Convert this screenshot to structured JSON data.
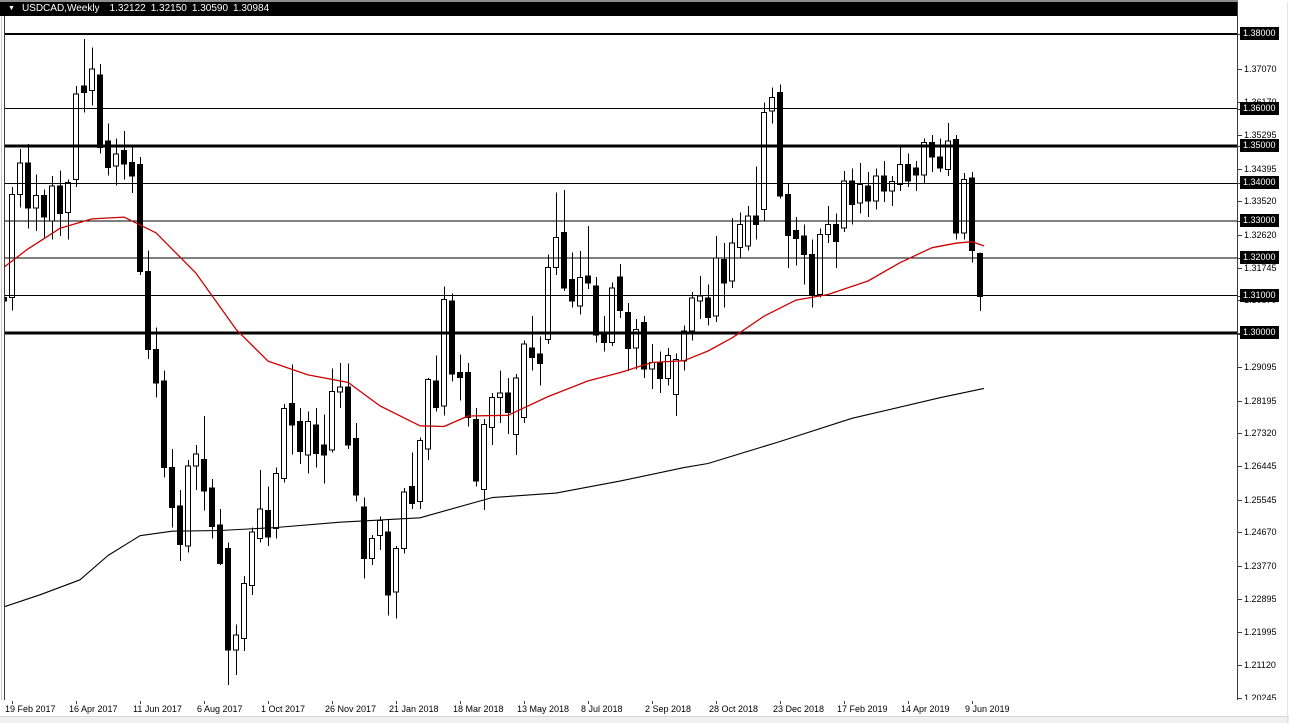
{
  "titlebar": {
    "collapse_icon": "▼",
    "symbol": "USDCAD,Weekly",
    "open": "1.32122",
    "high": "1.32150",
    "low": "1.30590",
    "close": "1.30984"
  },
  "colors": {
    "titlebar_bg": "#000000",
    "titlebar_text": "#ffffff",
    "background": "#ffffff",
    "bull_fill": "#ffffff",
    "bear_fill": "#000000",
    "outline": "#000000",
    "ma_fast": "#cc0000",
    "ma_slow": "#000000",
    "level_line": "#000000",
    "axis_box_bg": "#000000",
    "axis_box_text": "#ffffff"
  },
  "y_axis": {
    "boxed": [
      {
        "price": 1.38,
        "label": "1.38000"
      },
      {
        "price": 1.36,
        "label": "1.36000"
      },
      {
        "price": 1.35,
        "label": "1.35000"
      },
      {
        "price": 1.34,
        "label": "1.34000"
      },
      {
        "price": 1.33,
        "label": "1.33000"
      },
      {
        "price": 1.32,
        "label": "1.32000"
      },
      {
        "price": 1.31,
        "label": "1.31000"
      },
      {
        "price": 1.3,
        "label": "1.30000"
      }
    ],
    "ticks": [
      {
        "price": 1.3707,
        "label": "1.37070"
      },
      {
        "price": 1.3617,
        "label": "1.36170"
      },
      {
        "price": 1.35295,
        "label": "1.35295"
      },
      {
        "price": 1.34395,
        "label": "1.34395"
      },
      {
        "price": 1.3352,
        "label": "1.33520"
      },
      {
        "price": 1.3262,
        "label": "1.32620"
      },
      {
        "price": 1.31745,
        "label": "1.31745"
      },
      {
        "price": 1.3087,
        "label": "1.30870"
      },
      {
        "price": 1.2997,
        "label": "1.29970"
      },
      {
        "price": 1.29095,
        "label": "1.29095"
      },
      {
        "price": 1.28195,
        "label": "1.28195"
      },
      {
        "price": 1.2732,
        "label": "1.27320"
      },
      {
        "price": 1.26445,
        "label": "1.26445"
      },
      {
        "price": 1.25545,
        "label": "1.25545"
      },
      {
        "price": 1.2467,
        "label": "1.24670"
      },
      {
        "price": 1.2377,
        "label": "1.23770"
      },
      {
        "price": 1.22895,
        "label": "1.22895"
      },
      {
        "price": 1.21995,
        "label": "1.21995"
      },
      {
        "price": 1.2112,
        "label": "1.21120"
      },
      {
        "price": 1.20245,
        "label": "1.20245"
      }
    ]
  },
  "x_axis": {
    "labels": [
      {
        "week": 0,
        "text": "19 Feb 2017"
      },
      {
        "week": 8,
        "text": "16 Apr 2017"
      },
      {
        "week": 16,
        "text": "11 Jun 2017"
      },
      {
        "week": 24,
        "text": "6 Aug 2017"
      },
      {
        "week": 32,
        "text": "1 Oct 2017"
      },
      {
        "week": 40,
        "text": "26 Nov 2017"
      },
      {
        "week": 48,
        "text": "21 Jan 2018"
      },
      {
        "week": 56,
        "text": "18 Mar 2018"
      },
      {
        "week": 64,
        "text": "13 May 2018"
      },
      {
        "week": 72,
        "text": "8 Jul 2018"
      },
      {
        "week": 80,
        "text": "2 Sep 2018"
      },
      {
        "week": 88,
        "text": "28 Oct 2018"
      },
      {
        "week": 96,
        "text": "23 Dec 2018"
      },
      {
        "week": 104,
        "text": "17 Feb 2019"
      },
      {
        "week": 112,
        "text": "14 Apr 2019"
      },
      {
        "week": 120,
        "text": "9 Jun 2019"
      }
    ]
  },
  "chart_data": {
    "type": "candlestick",
    "title": "USDCAD Weekly",
    "symbol": "USDCAD",
    "timeframe": "Weekly",
    "start_label": "19 Feb 2017",
    "end_label": "9 Jun 2019",
    "visible_price_range": [
      1.20187,
      1.38476
    ],
    "last_candle_ohlc": [
      1.32122,
      1.3215,
      1.3059,
      1.30984
    ],
    "levels": [
      {
        "price": 1.38,
        "width": 2
      },
      {
        "price": 1.36,
        "width": 1
      },
      {
        "price": 1.35,
        "width": 3
      },
      {
        "price": 1.34,
        "width": 1
      },
      {
        "price": 1.33,
        "width": 1
      },
      {
        "price": 1.32,
        "width": 1
      },
      {
        "price": 1.31,
        "width": 1
      },
      {
        "price": 1.3,
        "width": 3
      }
    ],
    "clipped_left_candle": [
      1.3095,
      1.3105,
      1.3068,
      1.3085
    ],
    "candles": [
      [
        1.3095,
        1.339,
        1.306,
        1.337
      ],
      [
        1.337,
        1.3492,
        1.3335,
        1.3455
      ],
      [
        1.3455,
        1.3505,
        1.328,
        1.3334
      ],
      [
        1.3334,
        1.3424,
        1.3273,
        1.3368
      ],
      [
        1.3368,
        1.3384,
        1.3255,
        1.331
      ],
      [
        1.33,
        1.342,
        1.325,
        1.3393
      ],
      [
        1.3393,
        1.3435,
        1.326,
        1.332
      ],
      [
        1.3322,
        1.341,
        1.325,
        1.3402
      ],
      [
        1.341,
        1.3661,
        1.339,
        1.3639
      ],
      [
        1.3661,
        1.3786,
        1.359,
        1.3643
      ],
      [
        1.3648,
        1.3764,
        1.3608,
        1.3706
      ],
      [
        1.369,
        1.3719,
        1.348,
        1.3496
      ],
      [
        1.3513,
        1.356,
        1.3421,
        1.3443
      ],
      [
        1.3446,
        1.352,
        1.3395,
        1.3479
      ],
      [
        1.3488,
        1.354,
        1.341,
        1.3452
      ],
      [
        1.3456,
        1.35,
        1.3375,
        1.342
      ],
      [
        1.345,
        1.347,
        1.3155,
        1.3165
      ],
      [
        1.3165,
        1.322,
        1.293,
        1.2956
      ],
      [
        1.2956,
        1.3015,
        1.2827,
        1.2867
      ],
      [
        1.2872,
        1.29,
        1.2613,
        1.264
      ],
      [
        1.264,
        1.269,
        1.248,
        1.2533
      ],
      [
        1.2537,
        1.258,
        1.239,
        1.2435
      ],
      [
        1.243,
        1.266,
        1.2413,
        1.2645
      ],
      [
        1.2644,
        1.27,
        1.258,
        1.2676
      ],
      [
        1.2662,
        1.2778,
        1.2525,
        1.2577
      ],
      [
        1.2586,
        1.261,
        1.245,
        1.2483
      ],
      [
        1.2487,
        1.253,
        1.238,
        1.2384
      ],
      [
        1.2424,
        1.244,
        1.2059,
        1.2152
      ],
      [
        1.2152,
        1.222,
        1.2085,
        1.2192
      ],
      [
        1.2183,
        1.235,
        1.215,
        1.233
      ],
      [
        1.2325,
        1.248,
        1.23,
        1.2468
      ],
      [
        1.245,
        1.2634,
        1.244,
        1.253
      ],
      [
        1.2526,
        1.259,
        1.243,
        1.2455
      ],
      [
        1.2477,
        1.264,
        1.245,
        1.2624
      ],
      [
        1.2611,
        1.281,
        1.26,
        1.2798
      ],
      [
        1.2812,
        1.2916,
        1.2675,
        1.2754
      ],
      [
        1.2763,
        1.28,
        1.265,
        1.2683
      ],
      [
        1.2674,
        1.279,
        1.2625,
        1.2763
      ],
      [
        1.2754,
        1.28,
        1.264,
        1.2678
      ],
      [
        1.27,
        1.2782,
        1.2598,
        1.2674
      ],
      [
        1.2687,
        1.2905,
        1.268,
        1.2843
      ],
      [
        1.2843,
        1.292,
        1.28,
        1.2856
      ],
      [
        1.2856,
        1.2919,
        1.269,
        1.27
      ],
      [
        1.2718,
        1.276,
        1.255,
        1.2567
      ],
      [
        1.2535,
        1.256,
        1.2343,
        1.2397
      ],
      [
        1.2397,
        1.246,
        1.238,
        1.245
      ],
      [
        1.2459,
        1.251,
        1.242,
        1.2499
      ],
      [
        1.2468,
        1.25,
        1.2245,
        1.2299
      ],
      [
        1.2308,
        1.243,
        1.2236,
        1.2424
      ],
      [
        1.2424,
        1.2585,
        1.241,
        1.2575
      ],
      [
        1.2589,
        1.268,
        1.253,
        1.2544
      ],
      [
        1.255,
        1.272,
        1.253,
        1.2712
      ],
      [
        1.269,
        1.288,
        1.266,
        1.2876
      ],
      [
        1.2872,
        1.294,
        1.279,
        1.2801
      ],
      [
        1.2805,
        1.3124,
        1.278,
        1.309
      ],
      [
        1.3086,
        1.3105,
        1.287,
        1.289
      ],
      [
        1.2894,
        1.2943,
        1.282,
        1.2881
      ],
      [
        1.2894,
        1.292,
        1.275,
        1.2774
      ],
      [
        1.2769,
        1.28,
        1.259,
        1.2604
      ],
      [
        1.2582,
        1.277,
        1.2527,
        1.2756
      ],
      [
        1.2747,
        1.284,
        1.27,
        1.2827
      ],
      [
        1.2827,
        1.29,
        1.276,
        1.284
      ],
      [
        1.284,
        1.288,
        1.273,
        1.2787
      ],
      [
        1.2729,
        1.289,
        1.2674,
        1.288
      ],
      [
        1.2774,
        1.298,
        1.276,
        1.297
      ],
      [
        1.296,
        1.3045,
        1.29,
        1.2934
      ],
      [
        1.2944,
        1.299,
        1.286,
        1.2918
      ],
      [
        1.2983,
        1.321,
        1.297,
        1.3175
      ],
      [
        1.3175,
        1.3376,
        1.3155,
        1.3255
      ],
      [
        1.3269,
        1.3382,
        1.3112,
        1.3121
      ],
      [
        1.3143,
        1.3215,
        1.3068,
        1.3086
      ],
      [
        1.3072,
        1.3219,
        1.305,
        1.3148
      ],
      [
        1.3152,
        1.3286,
        1.3117,
        1.3134
      ],
      [
        1.3126,
        1.315,
        1.2975,
        1.2995
      ],
      [
        1.3,
        1.3046,
        1.295,
        1.2975
      ],
      [
        1.2975,
        1.3135,
        1.2965,
        1.312
      ],
      [
        1.315,
        1.3184,
        1.304,
        1.306
      ],
      [
        1.3055,
        1.308,
        1.2898,
        1.2958
      ],
      [
        1.296,
        1.3037,
        1.2903,
        1.301
      ],
      [
        1.3028,
        1.3045,
        1.288,
        1.2903
      ],
      [
        1.2903,
        1.297,
        1.285,
        1.2921
      ],
      [
        1.2921,
        1.295,
        1.284,
        1.2878
      ],
      [
        1.2878,
        1.296,
        1.286,
        1.294
      ],
      [
        1.2836,
        1.2945,
        1.2778,
        1.2929
      ],
      [
        1.2925,
        1.302,
        1.29,
        1.3005
      ],
      [
        1.3005,
        1.311,
        1.298,
        1.3094
      ],
      [
        1.3086,
        1.3152,
        1.3037,
        1.3099
      ],
      [
        1.3094,
        1.313,
        1.302,
        1.3041
      ],
      [
        1.3045,
        1.3259,
        1.303,
        1.32
      ],
      [
        1.3196,
        1.324,
        1.3068,
        1.3134
      ],
      [
        1.3139,
        1.3308,
        1.312,
        1.3241
      ],
      [
        1.3228,
        1.3322,
        1.32,
        1.329
      ],
      [
        1.3233,
        1.334,
        1.322,
        1.3313
      ],
      [
        1.3313,
        1.3445,
        1.325,
        1.329
      ],
      [
        1.333,
        1.3616,
        1.33,
        1.359
      ],
      [
        1.3594,
        1.3656,
        1.356,
        1.363
      ],
      [
        1.3643,
        1.3664,
        1.336,
        1.3366
      ],
      [
        1.337,
        1.34,
        1.3174,
        1.326
      ],
      [
        1.3274,
        1.331,
        1.318,
        1.3252
      ],
      [
        1.3259,
        1.329,
        1.313,
        1.321
      ],
      [
        1.321,
        1.325,
        1.3068,
        1.3103
      ],
      [
        1.3103,
        1.328,
        1.3095,
        1.3263
      ],
      [
        1.3263,
        1.334,
        1.324,
        1.329
      ],
      [
        1.329,
        1.332,
        1.3174,
        1.3245
      ],
      [
        1.3281,
        1.3433,
        1.327,
        1.3406
      ],
      [
        1.3406,
        1.344,
        1.329,
        1.3344
      ],
      [
        1.3348,
        1.3455,
        1.332,
        1.3397
      ],
      [
        1.3393,
        1.343,
        1.331,
        1.3353
      ],
      [
        1.3353,
        1.344,
        1.333,
        1.342
      ],
      [
        1.342,
        1.346,
        1.335,
        1.338
      ],
      [
        1.338,
        1.342,
        1.334,
        1.3405
      ],
      [
        1.3397,
        1.3504,
        1.338,
        1.345
      ],
      [
        1.345,
        1.348,
        1.339,
        1.3406
      ],
      [
        1.3441,
        1.346,
        1.338,
        1.3423
      ],
      [
        1.3423,
        1.352,
        1.34,
        1.3509
      ],
      [
        1.3509,
        1.353,
        1.343,
        1.347
      ],
      [
        1.347,
        1.352,
        1.343,
        1.3441
      ],
      [
        1.3437,
        1.3562,
        1.342,
        1.3513
      ],
      [
        1.3518,
        1.353,
        1.325,
        1.3267
      ],
      [
        1.3267,
        1.3428,
        1.325,
        1.341
      ],
      [
        1.3415,
        1.343,
        1.3188,
        1.3221
      ],
      [
        1.3212,
        1.3215,
        1.3059,
        1.3098
      ]
    ],
    "ma_fast": {
      "name": "moving-average-fast",
      "color": "#cc0000",
      "points": [
        [
          -1.5,
          1.3168
        ],
        [
          2,
          1.3225
        ],
        [
          6,
          1.328
        ],
        [
          10,
          1.3305
        ],
        [
          14,
          1.331
        ],
        [
          18,
          1.3268
        ],
        [
          23,
          1.316
        ],
        [
          28,
          1.301
        ],
        [
          32,
          1.2925
        ],
        [
          37,
          1.2888
        ],
        [
          42,
          1.2868
        ],
        [
          46,
          1.2805
        ],
        [
          51,
          1.2752
        ],
        [
          54,
          1.275
        ],
        [
          57,
          1.2778
        ],
        [
          62,
          1.278
        ],
        [
          67,
          1.283
        ],
        [
          72,
          1.2872
        ],
        [
          76,
          1.2894
        ],
        [
          80,
          1.2921
        ],
        [
          84,
          1.2926
        ],
        [
          87,
          1.2952
        ],
        [
          90,
          1.2987
        ],
        [
          94,
          1.3045
        ],
        [
          98,
          1.3088
        ],
        [
          102,
          1.3103
        ],
        [
          107,
          1.3139
        ],
        [
          111,
          1.3188
        ],
        [
          115,
          1.3228
        ],
        [
          118,
          1.324
        ],
        [
          120,
          1.3244
        ],
        [
          121.5,
          1.3233
        ]
      ]
    },
    "ma_slow": {
      "name": "moving-average-slow",
      "color": "#000000",
      "points": [
        [
          -1,
          1.2268
        ],
        [
          3.5,
          1.23
        ],
        [
          8.5,
          1.234
        ],
        [
          12,
          1.2405
        ],
        [
          16,
          1.2458
        ],
        [
          20,
          1.247
        ],
        [
          26,
          1.2472
        ],
        [
          33,
          1.248
        ],
        [
          41,
          1.2494
        ],
        [
          51,
          1.2506
        ],
        [
          60,
          1.256
        ],
        [
          68,
          1.2572
        ],
        [
          76,
          1.2604
        ],
        [
          84,
          1.264
        ],
        [
          87,
          1.2651
        ],
        [
          96,
          1.271
        ],
        [
          105,
          1.2772
        ],
        [
          116,
          1.2827
        ],
        [
          121.5,
          1.2852
        ]
      ]
    }
  }
}
